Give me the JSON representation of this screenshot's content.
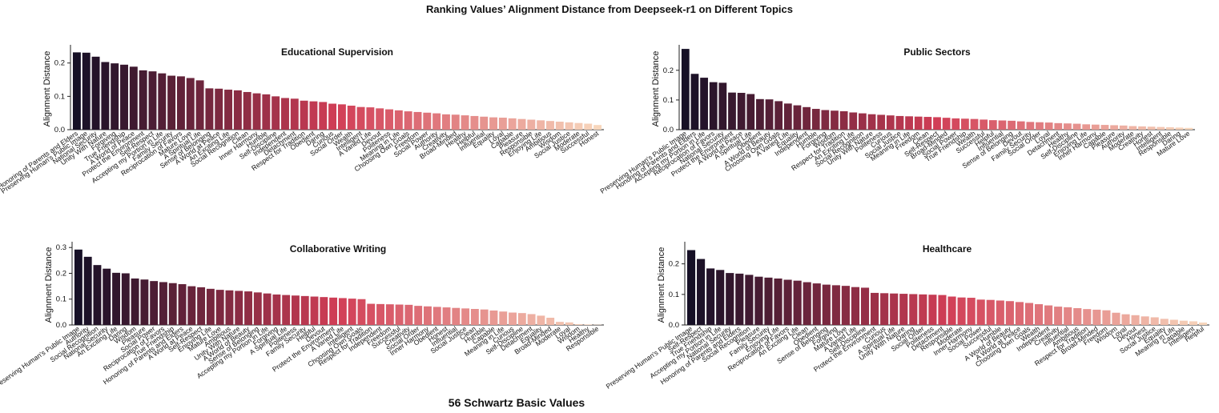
{
  "figure_title": "Ranking Values’ Alignment Distance from Deepseek-r1 on Different Topics",
  "x_common_label": "56 Schwartz Basic Values",
  "chart_data": [
    {
      "type": "bar",
      "title": "Educational Supervision",
      "ylabel": "Alignment Distance",
      "ylim": [
        0,
        0.245
      ],
      "yticks": [
        "0.0",
        "0.1",
        "0.2"
      ],
      "categories": [
        "Honoring of Parents and Elders",
        "Preserving Human's Public Image",
        "National Security",
        "Unity With Nature",
        "Forgiving",
        "True Friendship",
        "A World of Peace",
        "Protect the Environment",
        "Self-Respect",
        "Accepting my Portion in Life",
        "Family Security",
        "Reciprocation of Favors",
        "Mature Love",
        "A Spiritual Life",
        "Sense of Belonging",
        "A World at Peace",
        "An Exciting Life",
        "Social Recognition",
        "Clean",
        "Inner Harmony",
        "Humble",
        "Self-Discipline",
        "Independent",
        "Detachment",
        "Respect for Tradition",
        "Obedient",
        "Daring",
        "Curious",
        "Social Order",
        "Wealth",
        "Intelligent",
        "A Varied Life",
        "Devout",
        "Politeness",
        "Meaning in Life",
        "Choosing Own Goals",
        "Freedom",
        "Social Power",
        "Authority",
        "Creativity",
        "Broad-Minded",
        "Healthy",
        "Helpful",
        "Influential",
        "Equality",
        "Loyal",
        "Capable",
        "Pleasure",
        "Responsible",
        "Enjoying Life",
        "Ambitious",
        "Wisdom",
        "Social Justice",
        "Moderate",
        "Successful",
        "Honest"
      ],
      "values": [
        0.232,
        0.231,
        0.219,
        0.203,
        0.199,
        0.195,
        0.189,
        0.178,
        0.175,
        0.169,
        0.162,
        0.16,
        0.155,
        0.148,
        0.124,
        0.123,
        0.12,
        0.118,
        0.113,
        0.109,
        0.106,
        0.1,
        0.095,
        0.093,
        0.087,
        0.085,
        0.083,
        0.078,
        0.076,
        0.072,
        0.068,
        0.067,
        0.064,
        0.061,
        0.058,
        0.055,
        0.053,
        0.051,
        0.049,
        0.046,
        0.045,
        0.043,
        0.041,
        0.039,
        0.037,
        0.036,
        0.034,
        0.032,
        0.03,
        0.028,
        0.026,
        0.024,
        0.022,
        0.02,
        0.018,
        0.014
      ]
    },
    {
      "type": "bar",
      "title": "Public Sectors",
      "ylabel": "Alignment Distance",
      "ylim": [
        0,
        0.275
      ],
      "yticks": [
        "0.0",
        "0.1",
        "0.2"
      ],
      "categories": [
        "Preserving Human's Public Image",
        "Honoring of Parents and Elders",
        "Accepting my Portion in Life",
        "Reciprocation of Favors",
        "National Security",
        "Protect the Environment",
        "A World at Peace",
        "A Spiritual Life",
        "Obedient",
        "A World of Beauty",
        "Choosing Own Goals",
        "A Varied Life",
        "Equality",
        "Independent",
        "Humble",
        "Forgiving",
        "Wisdom",
        "Respect for Tradition",
        "An Exciting Life",
        "Social Recognition",
        "Unity With Nature",
        "Politeness",
        "Curious",
        "Social Justice",
        "Meaning in Life",
        "Freedom",
        "Clean",
        "Self-Respect",
        "Broad-Minded",
        "Social Power",
        "True Friendship",
        "Wealth",
        "Successful",
        "Helpful",
        "Influential",
        "Sense of Belonging",
        "Devout",
        "Family Security",
        "Social Order",
        "Loyal",
        "Detachment",
        "Healthy",
        "Self-Discipline",
        "Enjoying Life",
        "Inner Harmony",
        "Capable",
        "Pleasure",
        "Authority",
        "Moderate",
        "Creativity",
        "Honest",
        "Intelligent",
        "Responsible",
        "Daring",
        "Mature Love"
      ],
      "values": [
        0.272,
        0.188,
        0.175,
        0.16,
        0.158,
        0.125,
        0.124,
        0.12,
        0.103,
        0.102,
        0.096,
        0.088,
        0.082,
        0.076,
        0.07,
        0.066,
        0.064,
        0.062,
        0.058,
        0.055,
        0.052,
        0.05,
        0.048,
        0.046,
        0.045,
        0.044,
        0.043,
        0.042,
        0.04,
        0.038,
        0.037,
        0.036,
        0.034,
        0.032,
        0.031,
        0.03,
        0.028,
        0.026,
        0.025,
        0.024,
        0.022,
        0.021,
        0.02,
        0.018,
        0.017,
        0.016,
        0.015,
        0.014,
        0.012,
        0.011,
        0.01,
        0.009,
        0.008,
        0.007,
        0.006
      ]
    },
    {
      "type": "bar",
      "title": "Collaborative Writing",
      "ylabel": "Alignment Distance",
      "ylim": [
        0,
        0.31
      ],
      "yticks": [
        "0.0",
        "0.1",
        "0.2",
        "0.3"
      ],
      "categories": [
        "Preserving Human's Public Image",
        "Authority",
        "Social Recognition",
        "National Security",
        "An Exciting Life",
        "Daring",
        "Wisdom",
        "Pleasure",
        "Social Power",
        "Reciprocation of Favors",
        "True Friendship",
        "Honoring of Parents and Elders",
        "A World at Peace",
        "Self-Respect",
        "Enjoying Life",
        "Mature Love",
        "Ambitious",
        "Unity With Nature",
        "A World of Beauty",
        "Sense of Belonging",
        "Accepting my Portion in Life",
        "Forgiving",
        "A Spiritual Life",
        "Politeness",
        "Family Security",
        "Helpful",
        "Devout",
        "Protect the Environment",
        "A Varied Life",
        "Intelligent",
        "Choosing Own Goals",
        "Respect for Tradition",
        "Independent",
        "Freedom",
        "Successful",
        "Creativity",
        "Social Order",
        "Inner Harmony",
        "Obedient",
        "Honest",
        "Influential",
        "Social Justice",
        "Clean",
        "Humble",
        "Capable",
        "Meaning in Life",
        "Curious",
        "Self-Discipline",
        "Detachment",
        "Equality",
        "Broad-Minded",
        "Moderate",
        "Loyal",
        "Wisdom",
        "Healthy",
        "Responsible"
      ],
      "values": [
        0.292,
        0.264,
        0.232,
        0.218,
        0.202,
        0.2,
        0.18,
        0.176,
        0.17,
        0.166,
        0.162,
        0.158,
        0.15,
        0.146,
        0.14,
        0.136,
        0.134,
        0.132,
        0.13,
        0.126,
        0.122,
        0.118,
        0.116,
        0.114,
        0.112,
        0.11,
        0.108,
        0.106,
        0.104,
        0.102,
        0.1,
        0.082,
        0.081,
        0.08,
        0.079,
        0.078,
        0.074,
        0.072,
        0.07,
        0.068,
        0.066,
        0.064,
        0.062,
        0.06,
        0.056,
        0.052,
        0.048,
        0.046,
        0.042,
        0.036,
        0.028,
        0.012,
        0.01,
        0.003,
        0.002,
        0.001
      ]
    },
    {
      "type": "bar",
      "title": "Healthcare",
      "ylabel": "Alignment Distance",
      "ylim": [
        0,
        0.262
      ],
      "yticks": [
        "0.0",
        "0.1",
        "0.2"
      ],
      "categories": [
        "Preserving Human's Public Image",
        "Self-Respect",
        "True Friendship",
        "Accepting my Portion in Life",
        "National Security",
        "Honoring of Parents and Elders",
        "Social Recognition",
        "Pleasure",
        "Family Security",
        "Enjoying Life",
        "Reciprocation of Favors",
        "An Exciting Life",
        "Clean",
        "Obedient",
        "Sense of Belonging",
        "Forgiving",
        "Mature Love",
        "A Varied Life",
        "Self-Discipline",
        "Protect the Environment",
        "Curious",
        "A Spiritual Life",
        "Unity With Nature",
        "Daring",
        "Social Order",
        "Politeness",
        "Detachment",
        "Responsible",
        "Moderate",
        "Inner Harmony",
        "Social Power",
        "Successful",
        "Humble",
        "A World of Beauty",
        "A World at Peace",
        "Choosing Own Goals",
        "Wealth",
        "Independent",
        "Creativity",
        "Influential",
        "Ambitious",
        "Respect for Tradition",
        "Broad-Minded",
        "Freedom",
        "Wisdom",
        "Loyal",
        "Devout",
        "Honest",
        "Social Justice",
        "Equality",
        "Meaning in Life",
        "Capable",
        "Intelligent",
        "Helpful"
      ],
      "values": [
        0.245,
        0.216,
        0.185,
        0.18,
        0.17,
        0.168,
        0.164,
        0.158,
        0.155,
        0.152,
        0.148,
        0.145,
        0.14,
        0.136,
        0.132,
        0.13,
        0.128,
        0.124,
        0.122,
        0.105,
        0.104,
        0.103,
        0.102,
        0.101,
        0.1,
        0.099,
        0.098,
        0.093,
        0.09,
        0.089,
        0.083,
        0.082,
        0.08,
        0.078,
        0.075,
        0.072,
        0.068,
        0.064,
        0.06,
        0.058,
        0.055,
        0.052,
        0.05,
        0.048,
        0.04,
        0.035,
        0.032,
        0.028,
        0.025,
        0.02,
        0.017,
        0.014,
        0.012,
        0.008
      ]
    }
  ]
}
